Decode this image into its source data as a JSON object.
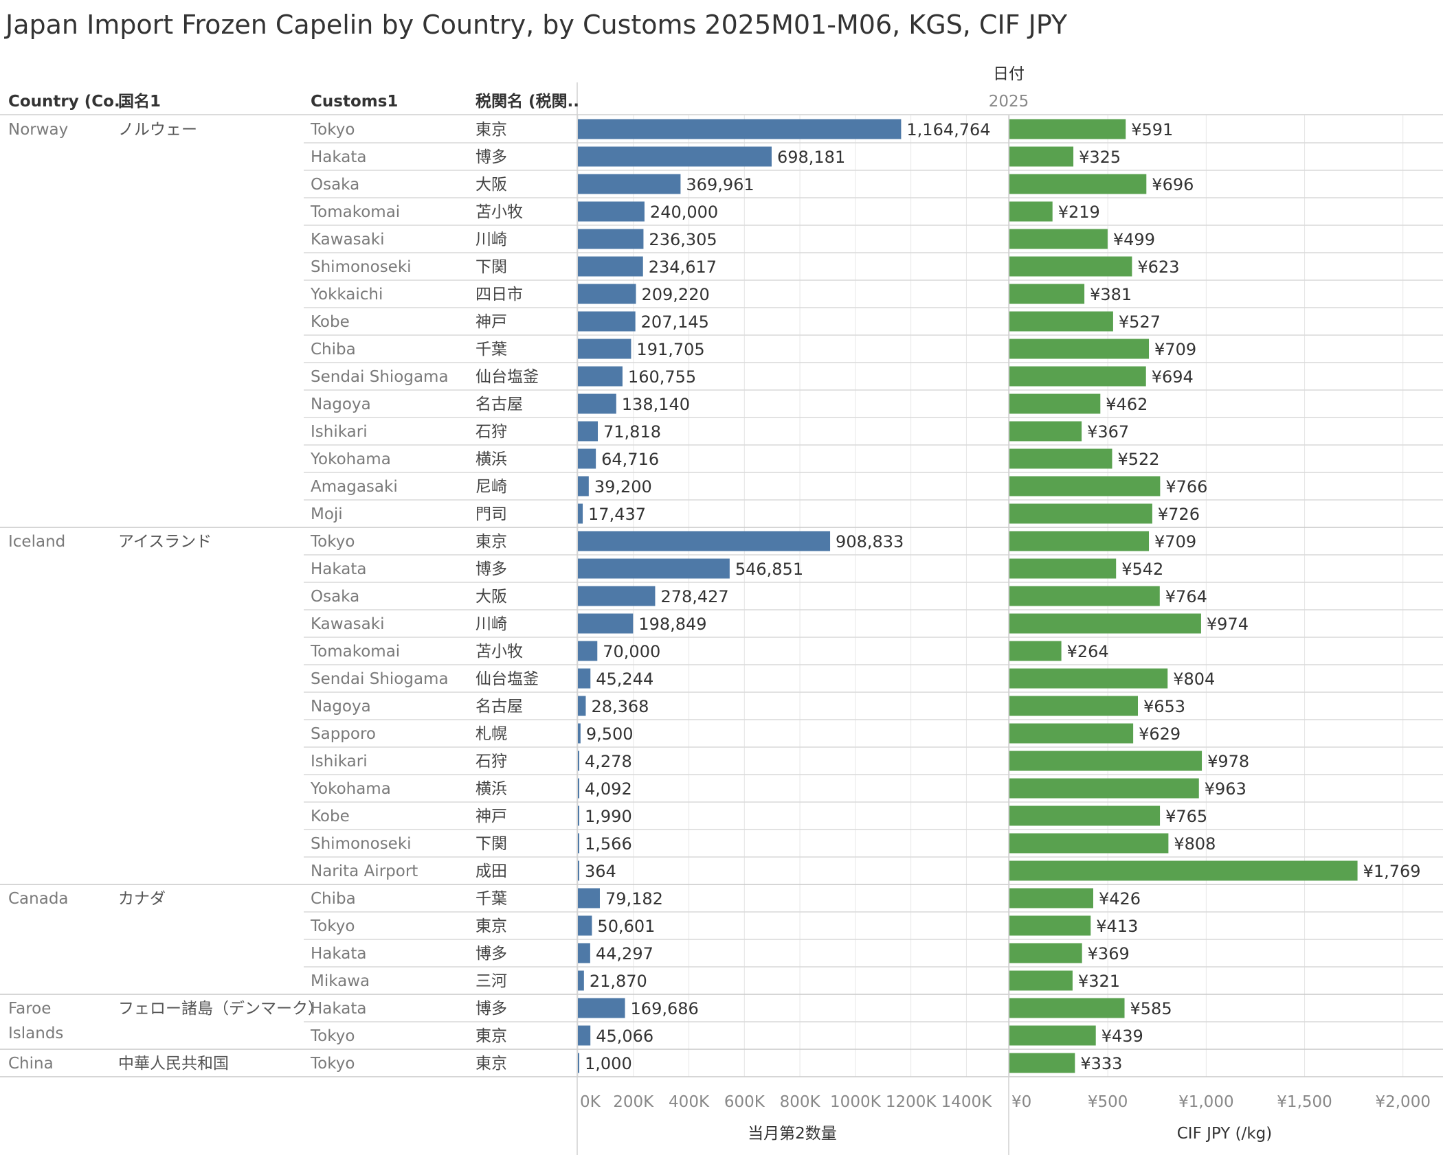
{
  "title": "Japan Import Frozen Capelin by Country, by Customs 2025M01-M06, KGS, CIF JPY",
  "headers": {
    "country": "Country (Co..",
    "country_jp": "国名1",
    "customs": "Customs1",
    "customs_jp": "税関名 (税関..",
    "date_label": "日付",
    "year": "2025"
  },
  "colors": {
    "qty_bar": "#4e79a7",
    "price_bar": "#59a14f",
    "text": "#333333",
    "muted": "#7a7a7a",
    "grid": "#e6e6e6"
  },
  "chart_data": [
    {
      "type": "bar",
      "orientation": "horizontal",
      "xlabel": "当月第2数量",
      "xlim": [
        0,
        1550000
      ],
      "ticks": [
        0,
        200000,
        400000,
        600000,
        800000,
        1000000,
        1200000,
        1400000
      ],
      "tick_labels": [
        "0K",
        "200K",
        "400K",
        "600K",
        "800K",
        "1000K",
        "1200K",
        "1400K"
      ],
      "value_labels": [
        "1,164,764",
        "698,181",
        "369,961",
        "240,000",
        "236,305",
        "234,617",
        "209,220",
        "207,145",
        "191,705",
        "160,755",
        "138,140",
        "71,818",
        "64,716",
        "39,200",
        "17,437",
        "908,833",
        "546,851",
        "278,427",
        "198,849",
        "70,000",
        "45,244",
        "28,368",
        "9,500",
        "4,278",
        "4,092",
        "1,990",
        "1,566",
        "364",
        "79,182",
        "50,601",
        "44,297",
        "21,870",
        "169,686",
        "45,066",
        "1,000"
      ]
    },
    {
      "type": "bar",
      "orientation": "horizontal",
      "xlabel": "CIF JPY (/kg)",
      "xlim": [
        0,
        2200
      ],
      "ticks": [
        0,
        500,
        1000,
        1500,
        2000
      ],
      "tick_labels": [
        "¥0",
        "¥500",
        "¥1,000",
        "¥1,500",
        "¥2,000"
      ],
      "value_labels": [
        "¥591",
        "¥325",
        "¥696",
        "¥219",
        "¥499",
        "¥623",
        "¥381",
        "¥527",
        "¥709",
        "¥694",
        "¥462",
        "¥367",
        "¥522",
        "¥766",
        "¥726",
        "¥709",
        "¥542",
        "¥764",
        "¥974",
        "¥264",
        "¥804",
        "¥653",
        "¥629",
        "¥978",
        "¥963",
        "¥765",
        "¥808",
        "¥1,769",
        "¥426",
        "¥413",
        "¥369",
        "¥321",
        "¥585",
        "¥439",
        "¥333"
      ]
    }
  ],
  "groups": [
    {
      "country": "Norway",
      "country_jp": "ノルウェー",
      "rows": [
        {
          "customs": "Tokyo",
          "customs_jp": "東京",
          "qty": 1164764,
          "cif": 591
        },
        {
          "customs": "Hakata",
          "customs_jp": "博多",
          "qty": 698181,
          "cif": 325
        },
        {
          "customs": "Osaka",
          "customs_jp": "大阪",
          "qty": 369961,
          "cif": 696
        },
        {
          "customs": "Tomakomai",
          "customs_jp": "苫小牧",
          "qty": 240000,
          "cif": 219
        },
        {
          "customs": "Kawasaki",
          "customs_jp": "川崎",
          "qty": 236305,
          "cif": 499
        },
        {
          "customs": "Shimonoseki",
          "customs_jp": "下関",
          "qty": 234617,
          "cif": 623
        },
        {
          "customs": "Yokkaichi",
          "customs_jp": "四日市",
          "qty": 209220,
          "cif": 381
        },
        {
          "customs": "Kobe",
          "customs_jp": "神戸",
          "qty": 207145,
          "cif": 527
        },
        {
          "customs": "Chiba",
          "customs_jp": "千葉",
          "qty": 191705,
          "cif": 709
        },
        {
          "customs": "Sendai Shiogama",
          "customs_jp": "仙台塩釜",
          "qty": 160755,
          "cif": 694
        },
        {
          "customs": "Nagoya",
          "customs_jp": "名古屋",
          "qty": 138140,
          "cif": 462
        },
        {
          "customs": "Ishikari",
          "customs_jp": "石狩",
          "qty": 71818,
          "cif": 367
        },
        {
          "customs": "Yokohama",
          "customs_jp": "横浜",
          "qty": 64716,
          "cif": 522
        },
        {
          "customs": "Amagasaki",
          "customs_jp": "尼崎",
          "qty": 39200,
          "cif": 766
        },
        {
          "customs": "Moji",
          "customs_jp": "門司",
          "qty": 17437,
          "cif": 726
        }
      ]
    },
    {
      "country": "Iceland",
      "country_jp": "アイスランド",
      "rows": [
        {
          "customs": "Tokyo",
          "customs_jp": "東京",
          "qty": 908833,
          "cif": 709
        },
        {
          "customs": "Hakata",
          "customs_jp": "博多",
          "qty": 546851,
          "cif": 542
        },
        {
          "customs": "Osaka",
          "customs_jp": "大阪",
          "qty": 278427,
          "cif": 764
        },
        {
          "customs": "Kawasaki",
          "customs_jp": "川崎",
          "qty": 198849,
          "cif": 974
        },
        {
          "customs": "Tomakomai",
          "customs_jp": "苫小牧",
          "qty": 70000,
          "cif": 264
        },
        {
          "customs": "Sendai Shiogama",
          "customs_jp": "仙台塩釜",
          "qty": 45244,
          "cif": 804
        },
        {
          "customs": "Nagoya",
          "customs_jp": "名古屋",
          "qty": 28368,
          "cif": 653
        },
        {
          "customs": "Sapporo",
          "customs_jp": "札幌",
          "qty": 9500,
          "cif": 629
        },
        {
          "customs": "Ishikari",
          "customs_jp": "石狩",
          "qty": 4278,
          "cif": 978
        },
        {
          "customs": "Yokohama",
          "customs_jp": "横浜",
          "qty": 4092,
          "cif": 963
        },
        {
          "customs": "Kobe",
          "customs_jp": "神戸",
          "qty": 1990,
          "cif": 765
        },
        {
          "customs": "Shimonoseki",
          "customs_jp": "下関",
          "qty": 1566,
          "cif": 808
        },
        {
          "customs": "Narita Airport",
          "customs_jp": "成田",
          "qty": 364,
          "cif": 1769
        }
      ]
    },
    {
      "country": "Canada",
      "country_jp": "カナダ",
      "rows": [
        {
          "customs": "Chiba",
          "customs_jp": "千葉",
          "qty": 79182,
          "cif": 426
        },
        {
          "customs": "Tokyo",
          "customs_jp": "東京",
          "qty": 50601,
          "cif": 413
        },
        {
          "customs": "Hakata",
          "customs_jp": "博多",
          "qty": 44297,
          "cif": 369
        },
        {
          "customs": "Mikawa",
          "customs_jp": "三河",
          "qty": 21870,
          "cif": 321
        }
      ]
    },
    {
      "country": "Faroe Islands",
      "country_jp": "フェロー諸島（デンマーク）",
      "rows": [
        {
          "customs": "Hakata",
          "customs_jp": "博多",
          "qty": 169686,
          "cif": 585
        },
        {
          "customs": "Tokyo",
          "customs_jp": "東京",
          "qty": 45066,
          "cif": 439
        }
      ]
    },
    {
      "country": "China",
      "country_jp": "中華人民共和国",
      "rows": [
        {
          "customs": "Tokyo",
          "customs_jp": "東京",
          "qty": 1000,
          "cif": 333
        }
      ]
    }
  ]
}
